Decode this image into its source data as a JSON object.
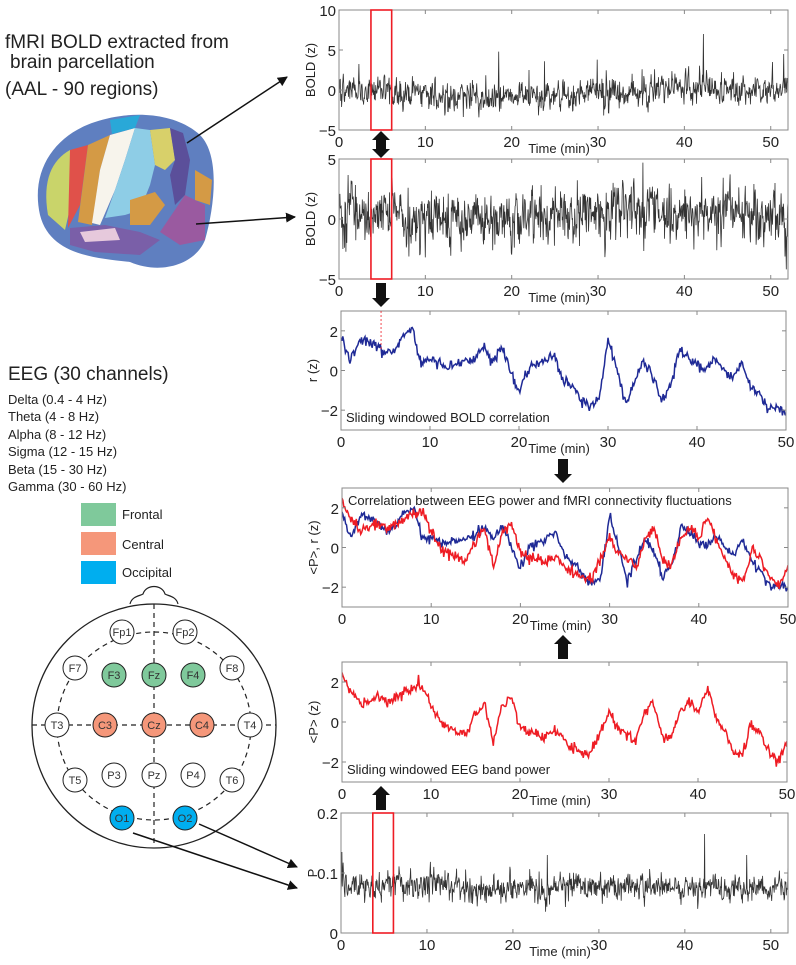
{
  "left": {
    "fmri_title_line1": "fMRI BOLD extracted from",
    "fmri_title_line2": "brain parcellation",
    "fmri_title_line3": "(AAL - 90 regions)",
    "eeg_title": "EEG (30 channels)",
    "bands": [
      "Delta (0.4 - 4 Hz)",
      "Theta (4 - 8 Hz)",
      "Alpha (8 - 12 Hz)",
      "Sigma (12 - 15 Hz)",
      "Beta (15 - 30 Hz)",
      "Gamma (30 - 60 Hz)"
    ],
    "legend": [
      {
        "label": "Frontal",
        "color": "#7fc99b"
      },
      {
        "label": "Central",
        "color": "#f5977a"
      },
      {
        "label": "Occipital",
        "color": "#00aeef"
      }
    ],
    "electrodes": [
      {
        "label": "Fp1",
        "group": "none"
      },
      {
        "label": "Fp2",
        "group": "none"
      },
      {
        "label": "F7",
        "group": "none"
      },
      {
        "label": "F3",
        "group": "Frontal"
      },
      {
        "label": "Fz",
        "group": "Frontal"
      },
      {
        "label": "F4",
        "group": "Frontal"
      },
      {
        "label": "F8",
        "group": "none"
      },
      {
        "label": "T3",
        "group": "none"
      },
      {
        "label": "C3",
        "group": "Central"
      },
      {
        "label": "Cz",
        "group": "Central"
      },
      {
        "label": "C4",
        "group": "Central"
      },
      {
        "label": "T4",
        "group": "none"
      },
      {
        "label": "T5",
        "group": "none"
      },
      {
        "label": "P3",
        "group": "none"
      },
      {
        "label": "Pz",
        "group": "none"
      },
      {
        "label": "P4",
        "group": "none"
      },
      {
        "label": "T6",
        "group": "none"
      },
      {
        "label": "O1",
        "group": "Occipital"
      },
      {
        "label": "O2",
        "group": "Occipital"
      }
    ]
  },
  "colors": {
    "bold_trace": "#333333",
    "correlation": "#1f2a96",
    "eeg_power": "#ee1c24",
    "highlight_window": "#ee1c24",
    "axes": "#888888"
  },
  "chart_data": [
    {
      "type": "line",
      "ylabel": "BOLD (z)",
      "xlabel": "Time (min)",
      "xlim": [
        0,
        52
      ],
      "ylim": [
        -5,
        10
      ],
      "xticks": [
        0,
        10,
        20,
        30,
        40,
        50
      ],
      "yticks": [
        -5,
        0,
        5,
        10
      ],
      "series": [
        {
          "color": "#333333",
          "baseline": 0,
          "noise_sd": 0.9,
          "peaks": [
            [
              18.5,
              4.8
            ],
            [
              22.0,
              2.5
            ],
            [
              23.8,
              3.6
            ],
            [
              29.9,
              3.8
            ],
            [
              35.1,
              2.6
            ],
            [
              42.2,
              7.0
            ],
            [
              50.2,
              3.5
            ],
            [
              51.5,
              4.5
            ]
          ]
        }
      ],
      "highlight_window": [
        3.7,
        6.1
      ]
    },
    {
      "type": "line",
      "ylabel": "BOLD (z)",
      "xlabel": "Time (min)",
      "xlim": [
        0,
        52
      ],
      "ylim": [
        -5,
        5
      ],
      "xticks": [
        0,
        10,
        20,
        30,
        40,
        50
      ],
      "yticks": [
        -5,
        0,
        5
      ],
      "series": [
        {
          "color": "#333333",
          "baseline": 0,
          "noise_sd": 1.1,
          "peaks": [
            [
              35.2,
              4.7
            ],
            [
              42.0,
              3.5
            ],
            [
              10.0,
              -3.2
            ],
            [
              17.8,
              -2.6
            ],
            [
              50.5,
              3.0
            ],
            [
              51.8,
              -4.2
            ]
          ]
        }
      ],
      "highlight_window": [
        3.7,
        6.1
      ]
    },
    {
      "type": "line",
      "ylabel": "r (z)",
      "xlabel": "Time (min)",
      "annotation": "Sliding windowed BOLD  correlation",
      "xlim": [
        0,
        50
      ],
      "ylim": [
        -3,
        3
      ],
      "xticks": [
        0,
        10,
        20,
        30,
        40,
        50
      ],
      "yticks": [
        -2,
        0,
        2
      ],
      "x": [
        0,
        1,
        2,
        3,
        4,
        5,
        6,
        7,
        8,
        9,
        10,
        11,
        12,
        13,
        14,
        15,
        16,
        17,
        18,
        19,
        20,
        21,
        22,
        23,
        24,
        25,
        26,
        27,
        28,
        29,
        30,
        31,
        32,
        33,
        34,
        35,
        36,
        37,
        38,
        39,
        40,
        41,
        42,
        43,
        44,
        45,
        46,
        47,
        48,
        49,
        50
      ],
      "series": [
        {
          "color": "#1f2a96",
          "values": [
            1.7,
            0.5,
            1.5,
            1.5,
            1.2,
            0.9,
            1.0,
            1.8,
            2.1,
            0.4,
            0.6,
            0.3,
            0.2,
            0.3,
            0.5,
            0.6,
            1.1,
            0.4,
            1.2,
            0.0,
            -1.0,
            0.0,
            0.3,
            0.5,
            0.8,
            -0.5,
            -0.8,
            -1.4,
            -1.8,
            -1.5,
            1.6,
            0.0,
            -1.7,
            -0.5,
            0.5,
            -0.3,
            -1.5,
            -0.8,
            1.0,
            0.7,
            0.2,
            0.1,
            0.6,
            0.0,
            -0.4,
            0.4,
            -0.8,
            -1.2,
            -2.0,
            -1.8,
            -2.1
          ]
        }
      ],
      "marker_time": 4.5
    },
    {
      "type": "line",
      "ylabel": "<P>, r  (z)",
      "xlabel": "Time (min)",
      "annotation": "Correlation between EEG power and fMRI connectivity fluctuations",
      "xlim": [
        0,
        50
      ],
      "ylim": [
        -3,
        3
      ],
      "xticks": [
        0,
        10,
        20,
        30,
        40,
        50
      ],
      "yticks": [
        -2,
        0,
        2
      ],
      "x": [
        0,
        1,
        2,
        3,
        4,
        5,
        6,
        7,
        8,
        9,
        10,
        11,
        12,
        13,
        14,
        15,
        16,
        17,
        18,
        19,
        20,
        21,
        22,
        23,
        24,
        25,
        26,
        27,
        28,
        29,
        30,
        31,
        32,
        33,
        34,
        35,
        36,
        37,
        38,
        39,
        40,
        41,
        42,
        43,
        44,
        45,
        46,
        47,
        48,
        49,
        50
      ],
      "series": [
        {
          "color": "#1f2a96",
          "values": [
            1.7,
            0.5,
            1.5,
            1.5,
            1.2,
            0.9,
            1.0,
            1.8,
            2.1,
            0.4,
            0.6,
            0.3,
            0.2,
            0.3,
            0.5,
            0.6,
            1.1,
            0.4,
            1.2,
            0.0,
            -1.0,
            0.0,
            0.3,
            0.5,
            0.8,
            -0.5,
            -0.8,
            -1.4,
            -1.8,
            -1.5,
            1.6,
            0.0,
            -1.7,
            -0.5,
            0.5,
            -0.3,
            -1.5,
            -0.8,
            1.0,
            0.7,
            0.2,
            0.1,
            0.6,
            0.0,
            -0.4,
            0.4,
            -0.8,
            -1.2,
            -2.0,
            -1.8,
            -2.1
          ]
        },
        {
          "color": "#ee1c24",
          "values": [
            2.3,
            1.5,
            0.9,
            1.0,
            1.3,
            1.0,
            1.2,
            1.5,
            1.7,
            1.8,
            0.8,
            0.0,
            -0.3,
            -0.5,
            -0.6,
            0.4,
            0.9,
            -1.0,
            0.8,
            1.3,
            -0.3,
            -0.5,
            -0.6,
            -0.8,
            -0.4,
            -1.0,
            -1.3,
            -1.5,
            -1.6,
            -0.6,
            0.5,
            -0.3,
            -0.6,
            -1.0,
            0.5,
            0.9,
            -0.7,
            -0.8,
            0.5,
            1.0,
            0.4,
            1.6,
            0.3,
            -0.5,
            -1.5,
            -1.6,
            -0.1,
            -0.6,
            -1.6,
            -2.0,
            -0.9
          ]
        }
      ]
    },
    {
      "type": "line",
      "ylabel": "<P> (z)",
      "xlabel": "Time (min)",
      "annotation": "Sliding windowed EEG band power",
      "xlim": [
        0,
        50
      ],
      "ylim": [
        -3,
        3
      ],
      "xticks": [
        0,
        10,
        20,
        30,
        40,
        50
      ],
      "yticks": [
        -2,
        0,
        2
      ],
      "x": [
        0,
        1,
        2,
        3,
        4,
        5,
        6,
        7,
        8,
        9,
        10,
        11,
        12,
        13,
        14,
        15,
        16,
        17,
        18,
        19,
        20,
        21,
        22,
        23,
        24,
        25,
        26,
        27,
        28,
        29,
        30,
        31,
        32,
        33,
        34,
        35,
        36,
        37,
        38,
        39,
        40,
        41,
        42,
        43,
        44,
        45,
        46,
        47,
        48,
        49,
        50
      ],
      "series": [
        {
          "color": "#ee1c24",
          "values": [
            2.3,
            1.5,
            0.9,
            1.0,
            1.3,
            1.0,
            1.2,
            1.5,
            1.7,
            1.8,
            0.8,
            0.0,
            -0.3,
            -0.5,
            -0.6,
            0.4,
            0.9,
            -1.0,
            0.8,
            1.3,
            -0.3,
            -0.5,
            -0.6,
            -0.8,
            -0.4,
            -1.0,
            -1.3,
            -1.5,
            -1.6,
            -0.6,
            0.5,
            -0.3,
            -0.6,
            -1.0,
            0.5,
            0.9,
            -0.7,
            -0.8,
            0.5,
            1.0,
            0.4,
            1.6,
            0.3,
            -0.5,
            -1.5,
            -1.6,
            -0.1,
            -0.6,
            -1.6,
            -2.0,
            -0.9
          ]
        }
      ]
    },
    {
      "type": "line",
      "ylabel": "P",
      "xlabel": "Time (min)",
      "xlim": [
        0,
        52
      ],
      "ylim": [
        0,
        0.2
      ],
      "xticks": [
        0,
        10,
        20,
        30,
        40,
        50
      ],
      "yticks": [
        0,
        0.1,
        0.2
      ],
      "series": [
        {
          "color": "#333333",
          "baseline": 0.075,
          "noise_sd": 0.011,
          "peaks": [
            [
              0.1,
              0.135
            ],
            [
              24.0,
              0.13
            ],
            [
              42.3,
              0.165
            ],
            [
              47.2,
              0.13
            ],
            [
              52.0,
              0.12
            ]
          ]
        }
      ],
      "highlight_window": [
        3.7,
        6.1
      ]
    }
  ]
}
